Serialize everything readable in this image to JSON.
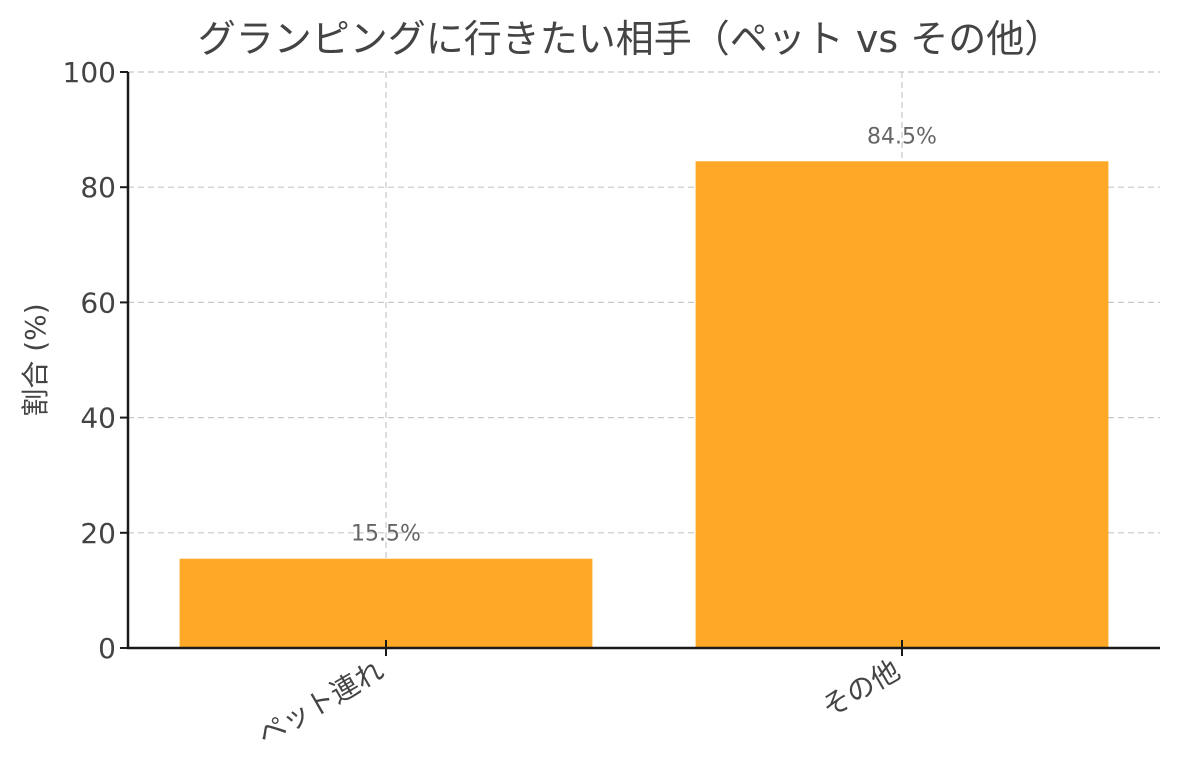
{
  "chart_data": {
    "type": "bar",
    "title": "グランピングに行きたい相手（ペット vs その他）",
    "xlabel": "",
    "ylabel": "割合 (%)",
    "categories": [
      "ペット連れ",
      "その他"
    ],
    "values": [
      15.5,
      84.5
    ],
    "data_labels": [
      "15.5%",
      "84.5%"
    ],
    "ylim": [
      0,
      100
    ],
    "yticks": [
      0,
      20,
      40,
      60,
      80,
      100
    ],
    "ytick_labels": [
      "0",
      "20",
      "40",
      "60",
      "80",
      "100"
    ],
    "bar_color": "#FFA726",
    "grid": true,
    "legend": "none"
  }
}
